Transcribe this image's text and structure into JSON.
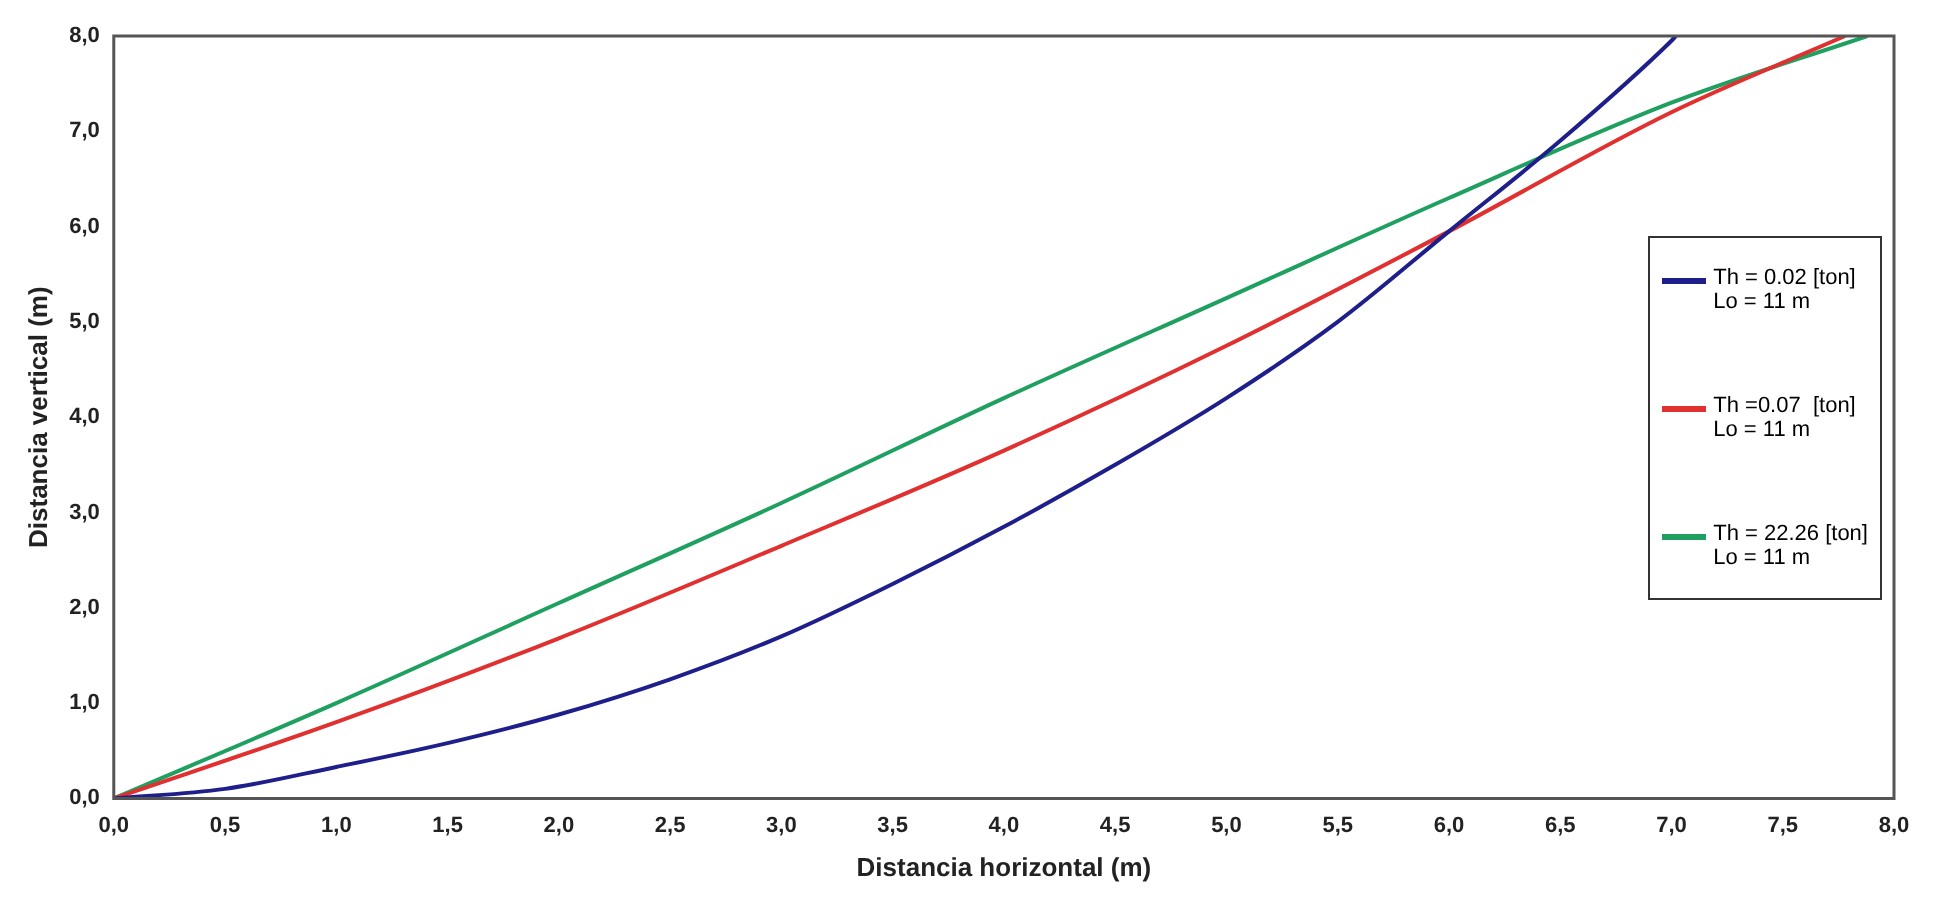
{
  "chart_data": {
    "type": "line",
    "xlabel": "Distancia horizontal (m)",
    "ylabel": "Distancia vertical (m)",
    "xlim": [
      0,
      8
    ],
    "ylim": [
      0,
      8
    ],
    "xticks": [
      {
        "value": 0,
        "label": "0,0"
      },
      {
        "value": 0.5,
        "label": "0,5"
      },
      {
        "value": 1,
        "label": "1,0"
      },
      {
        "value": 1.5,
        "label": "1,5"
      },
      {
        "value": 2,
        "label": "2,0"
      },
      {
        "value": 2.5,
        "label": "2,5"
      },
      {
        "value": 3,
        "label": "3,0"
      },
      {
        "value": 3.5,
        "label": "3,5"
      },
      {
        "value": 4,
        "label": "4,0"
      },
      {
        "value": 4.5,
        "label": "4,5"
      },
      {
        "value": 5,
        "label": "5,0"
      },
      {
        "value": 5.5,
        "label": "5,5"
      },
      {
        "value": 6,
        "label": "6,0"
      },
      {
        "value": 6.5,
        "label": "6,5"
      },
      {
        "value": 7,
        "label": "7,0"
      },
      {
        "value": 7.5,
        "label": "7,5"
      },
      {
        "value": 8,
        "label": "8,0"
      }
    ],
    "yticks": [
      {
        "value": 0,
        "label": "0,0"
      },
      {
        "value": 1,
        "label": "1,0"
      },
      {
        "value": 2,
        "label": "2,0"
      },
      {
        "value": 3,
        "label": "3,0"
      },
      {
        "value": 4,
        "label": "4,0"
      },
      {
        "value": 5,
        "label": "5,0"
      },
      {
        "value": 6,
        "label": "6,0"
      },
      {
        "value": 7,
        "label": "7,0"
      },
      {
        "value": 8,
        "label": "8,0"
      }
    ],
    "grid": false,
    "legend": "right",
    "marker": "none",
    "line_style": "solid",
    "series": [
      {
        "name": "Th = 0.02 [ton]\nLo = 11 m",
        "color": "#1f1f8c",
        "x": [
          0,
          0.5,
          1,
          1.5,
          2,
          2.5,
          3,
          3.5,
          4,
          4.5,
          5,
          5.5,
          6,
          6.5,
          7,
          7.02
        ],
        "values": [
          0,
          0.1,
          0.33,
          0.58,
          0.88,
          1.25,
          1.7,
          2.25,
          2.85,
          3.5,
          4.2,
          5.0,
          5.95,
          6.9,
          7.95,
          8.0
        ]
      },
      {
        "name": "Th =0.07  [ton]\nLo = 11 m",
        "color": "#e03030",
        "x": [
          0,
          1,
          2,
          3,
          4,
          5,
          6,
          7,
          7.78
        ],
        "values": [
          0,
          0.8,
          1.68,
          2.65,
          3.65,
          4.75,
          5.95,
          7.2,
          8.0
        ]
      },
      {
        "name": "Th = 22.26 [ton]\nLo = 11 m",
        "color": "#20a060",
        "x": [
          0,
          1,
          2,
          3,
          4,
          5,
          6,
          7,
          7.88
        ],
        "values": [
          0,
          1.0,
          2.05,
          3.1,
          4.2,
          5.25,
          6.3,
          7.3,
          8.0
        ]
      }
    ]
  }
}
